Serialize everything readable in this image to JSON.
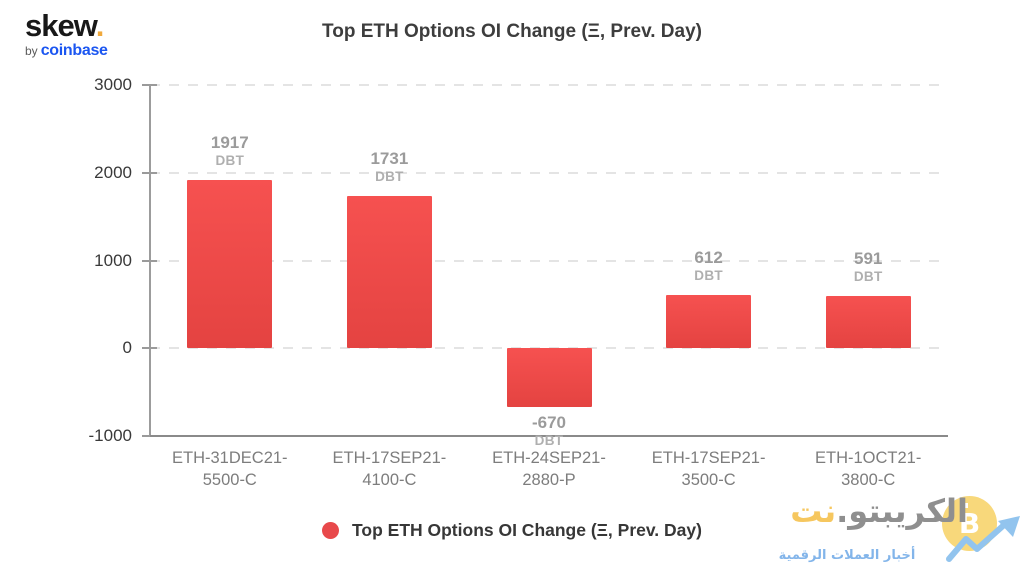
{
  "brand": {
    "name": "skew",
    "dot": ".",
    "byline_prefix": "by",
    "byline_brand": "coinbase"
  },
  "title": "Top ETH Options OI Change (Ξ, Prev. Day)",
  "chart_data": {
    "type": "bar",
    "title": "Top ETH Options OI Change (Ξ, Prev. Day)",
    "xlabel": "",
    "ylabel": "",
    "categories": [
      "ETH-31DEC21-5500-C",
      "ETH-17SEP21-4100-C",
      "ETH-24SEP21-2880-P",
      "ETH-17SEP21-3500-C",
      "ETH-1OCT21-3800-C"
    ],
    "category_lines": [
      [
        "ETH-31DEC21-",
        "5500-C"
      ],
      [
        "ETH-17SEP21-",
        "4100-C"
      ],
      [
        "ETH-24SEP21-",
        "2880-P"
      ],
      [
        "ETH-17SEP21-",
        "3500-C"
      ],
      [
        "ETH-1OCT21-",
        "3800-C"
      ]
    ],
    "values": [
      1917,
      1731,
      -670,
      612,
      591
    ],
    "unit": "DBT",
    "ylim": [
      -1000,
      3000
    ],
    "yticks": [
      3000,
      2000,
      1000,
      0,
      -1000
    ],
    "grid": "horizontal-dashed",
    "bar_color_top": "#f65150",
    "bar_color_bottom": "#e44341",
    "legend": {
      "label": "Top ETH Options OI Change (Ξ, Prev. Day)",
      "marker_color": "#e8494b",
      "position": "bottom"
    }
  },
  "watermark": {
    "site_main": "الكريبتو.",
    "site_tld": "نت",
    "coin_symbol": "₿",
    "coin_icon": "bitcoin-icon",
    "arrow_icon": "uptrend-arrow-icon",
    "tagline": "أخبار العملات الرقمية",
    "coin_color": "#f8d87b",
    "arrow_color": "#92c4ee",
    "tld_color": "#f6c75f"
  }
}
